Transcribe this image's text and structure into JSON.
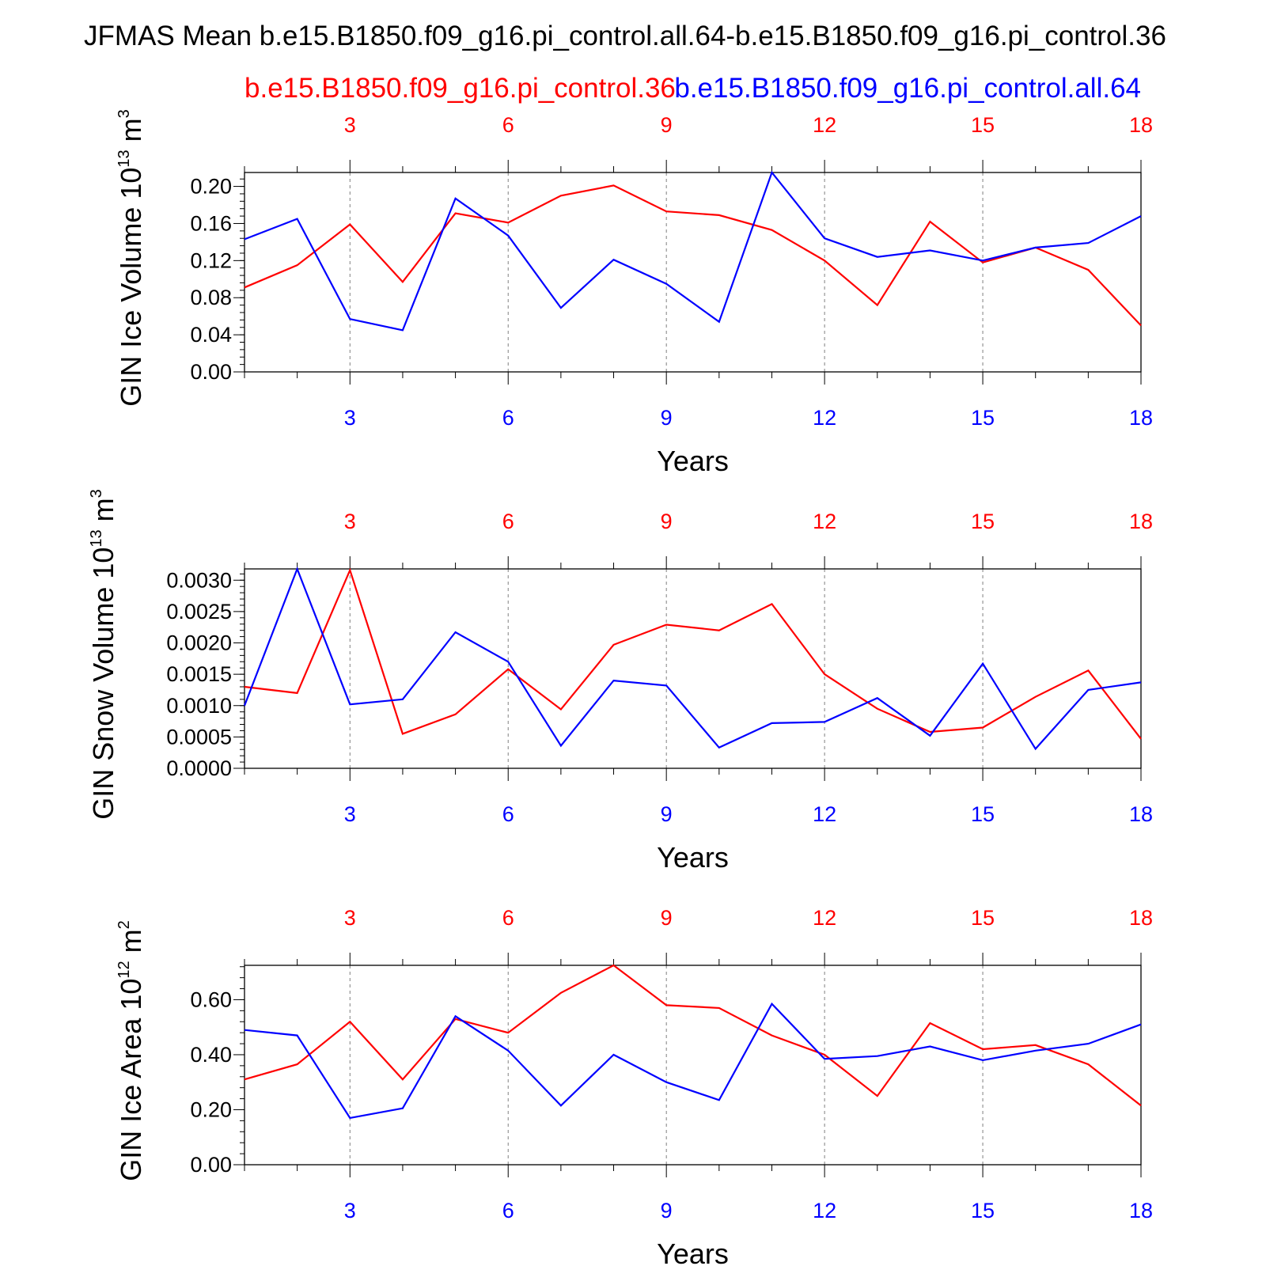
{
  "title": "JFMAS Mean b.e15.B1850.f09_g16.pi_control.all.64-b.e15.B1850.f09_g16.pi_control.36",
  "legend": {
    "red_label": "b.e15.B1850.f09_g16.pi_control.36",
    "blue_label": "b.e15.B1850.f09_g16.pi_control.all.64"
  },
  "colors": {
    "red": "#ff0000",
    "blue": "#0000ff",
    "axis": "#000000",
    "grid": "#808080"
  },
  "chart_data": [
    {
      "type": "line",
      "ylabel_main": "GIN Ice Volume 10",
      "ylabel_exp": "13",
      "ylabel_unit": "m",
      "ylabel_unit_exp": "3",
      "xlabel": "Years",
      "xlim": [
        1,
        18
      ],
      "ylim": [
        0,
        0.215
      ],
      "yticks": [
        0.0,
        0.04,
        0.08,
        0.12,
        0.16,
        0.2
      ],
      "ytick_labels": [
        "0.00",
        "0.04",
        "0.08",
        "0.12",
        "0.16",
        "0.20"
      ],
      "yminor_step": 0.008,
      "xticks": [
        3,
        6,
        9,
        12,
        15,
        18
      ],
      "xtick_labels": [
        "3",
        "6",
        "9",
        "12",
        "15",
        "18"
      ],
      "x": [
        1,
        2,
        3,
        4,
        5,
        6,
        7,
        8,
        9,
        10,
        11,
        12,
        13,
        14,
        15,
        16,
        17,
        18
      ],
      "series": [
        {
          "name": "b.e15.B1850.f09_g16.pi_control.36",
          "color": "red",
          "values": [
            0.091,
            0.115,
            0.159,
            0.097,
            0.171,
            0.161,
            0.19,
            0.201,
            0.173,
            0.169,
            0.153,
            0.12,
            0.072,
            0.162,
            0.118,
            0.134,
            0.11,
            0.05
          ]
        },
        {
          "name": "b.e15.B1850.f09_g16.pi_control.all.64",
          "color": "blue",
          "values": [
            0.143,
            0.165,
            0.057,
            0.045,
            0.187,
            0.147,
            0.069,
            0.121,
            0.095,
            0.054,
            0.215,
            0.144,
            0.124,
            0.131,
            0.12,
            0.134,
            0.139,
            0.168
          ]
        }
      ]
    },
    {
      "type": "line",
      "ylabel_main": "GIN Snow Volume 10",
      "ylabel_exp": "13",
      "ylabel_unit": "m",
      "ylabel_unit_exp": "3",
      "xlabel": "Years",
      "xlim": [
        1,
        18
      ],
      "ylim": [
        0,
        0.00318
      ],
      "yticks": [
        0.0,
        0.0005,
        0.001,
        0.0015,
        0.002,
        0.0025,
        0.003
      ],
      "ytick_labels": [
        "0.0000",
        "0.0005",
        "0.0010",
        "0.0015",
        "0.0020",
        "0.0025",
        "0.0030"
      ],
      "yminor_step": 0.0001,
      "xticks": [
        3,
        6,
        9,
        12,
        15,
        18
      ],
      "xtick_labels": [
        "3",
        "6",
        "9",
        "12",
        "15",
        "18"
      ],
      "x": [
        1,
        2,
        3,
        4,
        5,
        6,
        7,
        8,
        9,
        10,
        11,
        12,
        13,
        14,
        15,
        16,
        17,
        18
      ],
      "series": [
        {
          "name": "b.e15.B1850.f09_g16.pi_control.36",
          "color": "red",
          "values": [
            0.0013,
            0.0012,
            0.00316,
            0.00055,
            0.00086,
            0.00158,
            0.00094,
            0.00197,
            0.00229,
            0.0022,
            0.00262,
            0.0015,
            0.00095,
            0.00058,
            0.00065,
            0.00114,
            0.00156,
            0.00047
          ]
        },
        {
          "name": "b.e15.B1850.f09_g16.pi_control.all.64",
          "color": "blue",
          "values": [
            0.001,
            0.00318,
            0.00102,
            0.0011,
            0.00217,
            0.0017,
            0.00036,
            0.0014,
            0.00132,
            0.00033,
            0.00072,
            0.00074,
            0.00112,
            0.00052,
            0.00167,
            0.00031,
            0.00125,
            0.00137
          ]
        }
      ]
    },
    {
      "type": "line",
      "ylabel_main": "GIN Ice Area 10",
      "ylabel_exp": "12",
      "ylabel_unit": "m",
      "ylabel_unit_exp": "2",
      "xlabel": "Years",
      "xlim": [
        1,
        18
      ],
      "ylim": [
        0,
        0.725
      ],
      "yticks": [
        0.0,
        0.2,
        0.4,
        0.6
      ],
      "ytick_labels": [
        "0.00",
        "0.20",
        "0.40",
        "0.60"
      ],
      "yminor_step": 0.04,
      "xticks": [
        3,
        6,
        9,
        12,
        15,
        18
      ],
      "xtick_labels": [
        "3",
        "6",
        "9",
        "12",
        "15",
        "18"
      ],
      "x": [
        1,
        2,
        3,
        4,
        5,
        6,
        7,
        8,
        9,
        10,
        11,
        12,
        13,
        14,
        15,
        16,
        17,
        18
      ],
      "series": [
        {
          "name": "b.e15.B1850.f09_g16.pi_control.36",
          "color": "red",
          "values": [
            0.31,
            0.365,
            0.52,
            0.31,
            0.53,
            0.48,
            0.625,
            0.725,
            0.58,
            0.57,
            0.47,
            0.4,
            0.25,
            0.515,
            0.42,
            0.435,
            0.365,
            0.215
          ]
        },
        {
          "name": "b.e15.B1850.f09_g16.pi_control.all.64",
          "color": "blue",
          "values": [
            0.49,
            0.47,
            0.17,
            0.205,
            0.54,
            0.415,
            0.215,
            0.4,
            0.3,
            0.235,
            0.585,
            0.385,
            0.395,
            0.43,
            0.38,
            0.415,
            0.44,
            0.51
          ]
        }
      ]
    }
  ]
}
